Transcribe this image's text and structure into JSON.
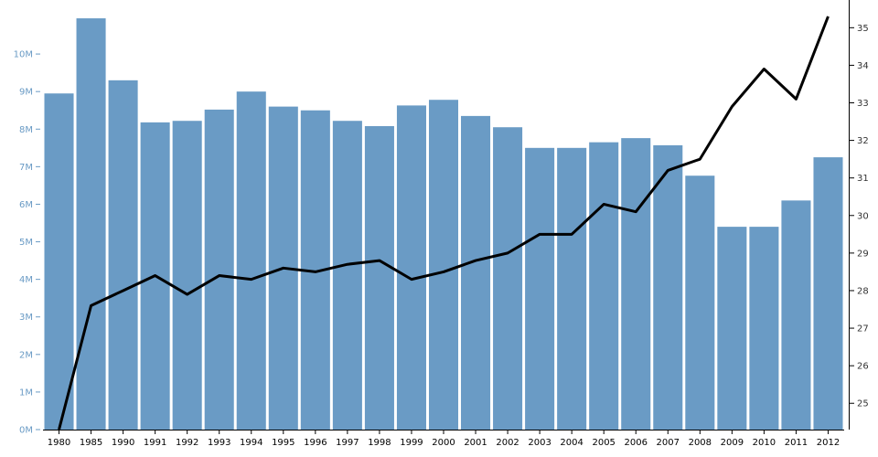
{
  "chart_data": {
    "type": "bar",
    "categories": [
      "1980",
      "1985",
      "1990",
      "1991",
      "1992",
      "1993",
      "1994",
      "1995",
      "1996",
      "1997",
      "1998",
      "1999",
      "2000",
      "2001",
      "2002",
      "2003",
      "2004",
      "2005",
      "2006",
      "2007",
      "2008",
      "2009",
      "2010",
      "2011",
      "2012"
    ],
    "series": [
      {
        "type": "bar",
        "axis": "left",
        "color": "#6a9bc5",
        "values": [
          8.95,
          10.95,
          9.3,
          8.18,
          8.22,
          8.52,
          9.0,
          8.6,
          8.5,
          8.22,
          8.08,
          8.63,
          8.78,
          8.35,
          8.05,
          7.5,
          7.5,
          7.65,
          7.76,
          7.57,
          6.76,
          5.4,
          5.4,
          6.1,
          7.25
        ]
      },
      {
        "type": "line",
        "axis": "right",
        "color": "#000000",
        "values": [
          24.3,
          27.6,
          28.0,
          28.4,
          27.9,
          28.4,
          28.3,
          28.6,
          28.5,
          28.7,
          28.8,
          28.3,
          28.5,
          28.8,
          29.0,
          29.5,
          29.5,
          30.3,
          30.1,
          31.2,
          31.5,
          32.9,
          33.9,
          33.1,
          35.3
        ]
      }
    ],
    "y_left": {
      "min": 0,
      "max": 11,
      "ticks": [
        0,
        1,
        2,
        3,
        4,
        5,
        6,
        7,
        8,
        9,
        10
      ],
      "tick_labels": [
        "0M",
        "1M",
        "2M",
        "3M",
        "4M",
        "5M",
        "6M",
        "7M",
        "8M",
        "9M",
        "10M"
      ],
      "color": "#6a9bc5"
    },
    "y_right": {
      "min": 24.3,
      "max": 35.3,
      "ticks": [
        25,
        26,
        27,
        28,
        29,
        30,
        31,
        32,
        33,
        34,
        35
      ],
      "tick_labels": [
        "25",
        "26",
        "27",
        "28",
        "29",
        "30",
        "31",
        "32",
        "33",
        "34",
        "35"
      ],
      "color": "#333333"
    },
    "title": "",
    "xlabel": "",
    "ylabel": "",
    "grid": false,
    "legend": "none"
  }
}
